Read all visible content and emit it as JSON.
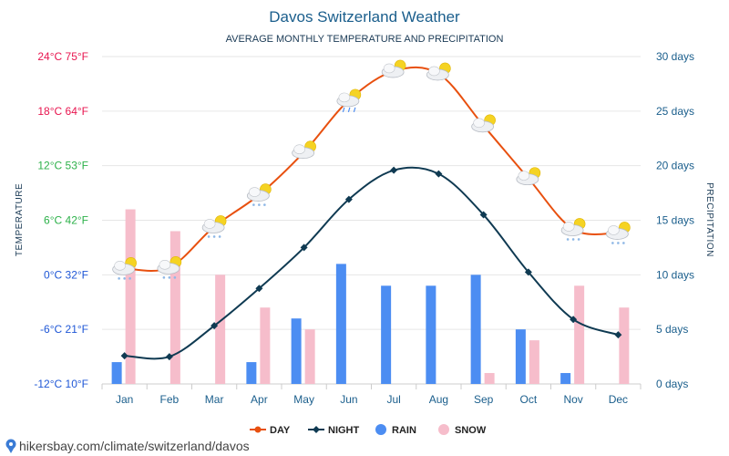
{
  "chart_data": {
    "type": "line",
    "title": "Davos Switzerland Weather",
    "subtitle": "AVERAGE MONTHLY TEMPERATURE AND PRECIPITATION",
    "y_left_label": "TEMPERATURE",
    "y_right_label": "PRECIPITATION",
    "categories": [
      "Jan",
      "Feb",
      "Mar",
      "Apr",
      "May",
      "Jun",
      "Jul",
      "Aug",
      "Sep",
      "Oct",
      "Nov",
      "Dec"
    ],
    "ylim_left": [
      -12,
      24
    ],
    "ylim_right": [
      0,
      30
    ],
    "y_left_ticks": [
      {
        "value": 24,
        "label": "24°C 75°F",
        "color": "#e8154f"
      },
      {
        "value": 18,
        "label": "18°C 64°F",
        "color": "#e8154f"
      },
      {
        "value": 12,
        "label": "12°C 53°F",
        "color": "#2db14a"
      },
      {
        "value": 6,
        "label": "6°C 42°F",
        "color": "#2db14a"
      },
      {
        "value": 0,
        "label": "0°C 32°F",
        "color": "#1f57d6"
      },
      {
        "value": -6,
        "label": "-6°C 21°F",
        "color": "#1f57d6"
      },
      {
        "value": -12,
        "label": "-12°C 10°F",
        "color": "#1f57d6"
      }
    ],
    "y_right_ticks": [
      {
        "value": 30,
        "label": "30 days"
      },
      {
        "value": 25,
        "label": "25 days"
      },
      {
        "value": 20,
        "label": "20 days"
      },
      {
        "value": 15,
        "label": "15 days"
      },
      {
        "value": 10,
        "label": "10 days"
      },
      {
        "value": 5,
        "label": "5 days"
      },
      {
        "value": 0,
        "label": "0 days"
      }
    ],
    "series": [
      {
        "name": "DAY",
        "type": "line",
        "axis": "left",
        "color": "#e8500f",
        "values": [
          0.7,
          0.8,
          5.3,
          8.8,
          13.5,
          19.2,
          22.4,
          22.1,
          16.4,
          10.6,
          5.0,
          4.6
        ]
      },
      {
        "name": "NIGHT",
        "type": "line",
        "axis": "left",
        "color": "#0f3a52",
        "values": [
          -8.9,
          -9.0,
          -5.6,
          -1.5,
          3.0,
          8.3,
          11.5,
          11.1,
          6.6,
          0.3,
          -4.9,
          -6.6
        ]
      },
      {
        "name": "RAIN",
        "type": "bar",
        "axis": "right",
        "color": "#4c8df2",
        "values": [
          2,
          0,
          0,
          2,
          6,
          11,
          9,
          9,
          10,
          5,
          1,
          0
        ]
      },
      {
        "name": "SNOW",
        "type": "bar",
        "axis": "right",
        "color": "#f6bdcb",
        "values": [
          16,
          14,
          10,
          7,
          5,
          0,
          0,
          0,
          1,
          4,
          9,
          7
        ]
      }
    ],
    "weather_icons": [
      "snow-sun",
      "snow-sun",
      "snow-sun",
      "snow-sun",
      "sun-cloud",
      "rain-sun",
      "sun-cloud",
      "sun-cloud",
      "sun-cloud",
      "sun-cloud",
      "snow-sun",
      "snow-sun"
    ],
    "legend_position": "bottom"
  },
  "colors": {
    "grid": "#e6e6e6",
    "title": "#1a5e8c",
    "axis_text": "#1a5e8c"
  },
  "source": {
    "text": "hikersbay.com/climate/switzerland/davos",
    "icon": "location-pin-icon"
  }
}
